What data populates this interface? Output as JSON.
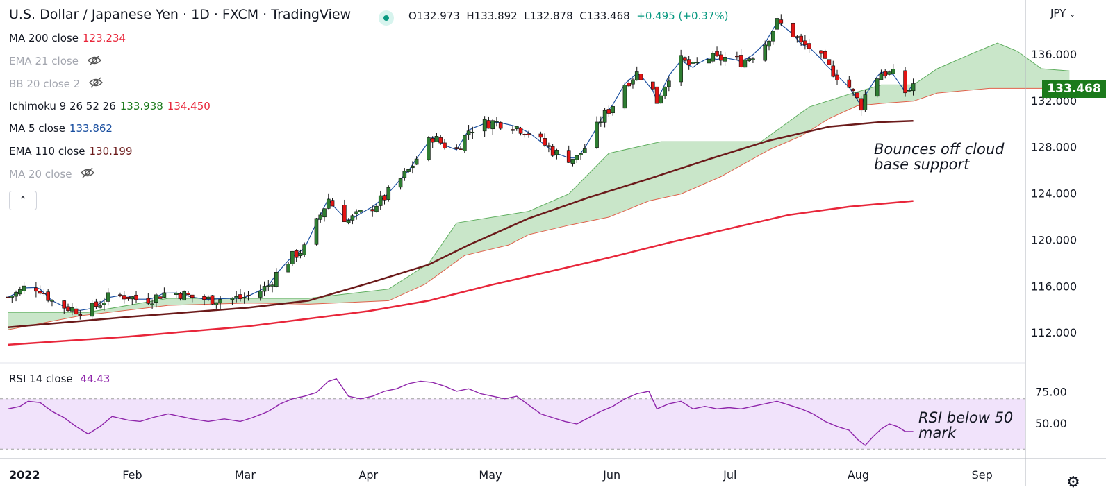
{
  "header": {
    "title": "U.S. Dollar / Japanese Yen · 1D · FXCM · TradingView",
    "ohlc": {
      "o": "O132.973",
      "h": "H133.892",
      "l": "L132.878",
      "c": "C133.468",
      "change": "+0.495 (+0.37%)"
    }
  },
  "indicators": [
    {
      "label": "MA 200 close",
      "value": "123.234",
      "color": "#e8263a",
      "hidden": false
    },
    {
      "label": "EMA 21 close",
      "value": "",
      "hidden": true
    },
    {
      "label": "BB 20 close 2",
      "value": "",
      "hidden": true
    },
    {
      "label": "Ichimoku 9 26 52 26",
      "value": "133.938",
      "value2": "134.450",
      "color": "#1b7a1b",
      "color2": "#e8263a",
      "hidden": false
    },
    {
      "label": "MA 5 close",
      "value": "133.862",
      "color": "#1a4fa0",
      "hidden": false
    },
    {
      "label": "EMA 110 close",
      "value": "130.199",
      "color": "#6b1a1a",
      "hidden": false
    },
    {
      "label": "MA 20 close",
      "value": "",
      "hidden": true
    }
  ],
  "rsi_legend": {
    "label": "RSI 14 close",
    "value": "44.43",
    "color": "#8e24aa"
  },
  "currency": "JPY",
  "current_price": "133.468",
  "annotations": {
    "main_line1": "Bounces off cloud",
    "main_line2": "base support",
    "rsi_line1": "RSI below 50",
    "rsi_line2": "mark"
  },
  "chart_data": [
    {
      "type": "candlestick",
      "ylim": [
        109.5,
        140.6
      ],
      "y_ticks": [
        "136.000",
        "132.000",
        "128.000",
        "124.000",
        "120.000",
        "116.000",
        "112.000"
      ],
      "x_ticks": [
        "2022",
        "Feb",
        "Mar",
        "Apr",
        "May",
        "Jun",
        "Jul",
        "Aug",
        "Sep"
      ],
      "x_tick_days": [
        0,
        31,
        59,
        90,
        120,
        151,
        181,
        212,
        243
      ],
      "days_visible": [
        -2,
        254
      ],
      "close_anchors": [
        [
          0,
          115.1
        ],
        [
          3,
          115.6
        ],
        [
          5,
          116.2
        ],
        [
          8,
          115.8
        ],
        [
          11,
          114.8
        ],
        [
          14,
          114.3
        ],
        [
          17,
          114.0
        ],
        [
          20,
          113.9
        ],
        [
          23,
          114.6
        ],
        [
          26,
          115.3
        ],
        [
          30,
          115.2
        ],
        [
          33,
          114.8
        ],
        [
          36,
          115.0
        ],
        [
          40,
          115.6
        ],
        [
          43,
          115.4
        ],
        [
          46,
          115.1
        ],
        [
          50,
          114.9
        ],
        [
          54,
          115.0
        ],
        [
          58,
          115.0
        ],
        [
          61,
          115.3
        ],
        [
          65,
          116.1
        ],
        [
          68,
          117.6
        ],
        [
          71,
          118.6
        ],
        [
          74,
          119.3
        ],
        [
          77,
          121.5
        ],
        [
          80,
          123.6
        ],
        [
          82,
          122.5
        ],
        [
          85,
          121.7
        ],
        [
          88,
          122.3
        ],
        [
          91,
          122.9
        ],
        [
          94,
          123.7
        ],
        [
          97,
          124.9
        ],
        [
          100,
          126.0
        ],
        [
          103,
          127.6
        ],
        [
          106,
          128.9
        ],
        [
          109,
          128.2
        ],
        [
          112,
          127.8
        ],
        [
          115,
          129.5
        ],
        [
          118,
          130.0
        ],
        [
          121,
          130.2
        ],
        [
          124,
          130.1
        ],
        [
          127,
          129.8
        ],
        [
          130,
          129.3
        ],
        [
          133,
          128.5
        ],
        [
          136,
          127.7
        ],
        [
          139,
          127.1
        ],
        [
          142,
          127.1
        ],
        [
          145,
          128.4
        ],
        [
          148,
          130.4
        ],
        [
          151,
          131.7
        ],
        [
          154,
          133.5
        ],
        [
          157,
          134.4
        ],
        [
          160,
          133.8
        ],
        [
          162,
          132.0
        ],
        [
          165,
          134.2
        ],
        [
          168,
          135.5
        ],
        [
          171,
          134.9
        ],
        [
          174,
          135.8
        ],
        [
          177,
          135.6
        ],
        [
          180,
          135.8
        ],
        [
          183,
          135.4
        ],
        [
          186,
          136.0
        ],
        [
          189,
          137.0
        ],
        [
          192,
          138.8
        ],
        [
          195,
          138.2
        ],
        [
          198,
          136.9
        ],
        [
          201,
          136.5
        ],
        [
          204,
          135.2
        ],
        [
          207,
          134.2
        ],
        [
          210,
          133.2
        ],
        [
          213,
          131.6
        ],
        [
          215,
          133.4
        ],
        [
          218,
          134.5
        ],
        [
          221,
          134.3
        ],
        [
          223,
          132.6
        ],
        [
          225,
          133.0
        ],
        [
          226,
          133.5
        ]
      ],
      "volatility": 0.9,
      "ichimoku_cloud": {
        "top": [
          [
            0,
            113.8
          ],
          [
            20,
            113.8
          ],
          [
            40,
            115.0
          ],
          [
            60,
            115.0
          ],
          [
            75,
            115.0
          ],
          [
            95,
            115.8
          ],
          [
            105,
            118.0
          ],
          [
            112,
            121.5
          ],
          [
            130,
            122.5
          ],
          [
            140,
            124.0
          ],
          [
            150,
            127.5
          ],
          [
            163,
            128.5
          ],
          [
            178,
            128.5
          ],
          [
            188,
            128.5
          ],
          [
            200,
            131.5
          ],
          [
            210,
            132.6
          ],
          [
            218,
            133.4
          ],
          [
            226,
            133.4
          ],
          [
            232,
            134.8
          ],
          [
            240,
            136.0
          ],
          [
            247,
            137.0
          ],
          [
            252,
            136.3
          ],
          [
            258,
            134.8
          ],
          [
            265,
            134.6
          ]
        ],
        "bottom": [
          [
            0,
            112.3
          ],
          [
            18,
            113.5
          ],
          [
            40,
            114.4
          ],
          [
            60,
            114.6
          ],
          [
            75,
            114.5
          ],
          [
            95,
            114.8
          ],
          [
            104,
            116.2
          ],
          [
            114,
            118.7
          ],
          [
            125,
            119.6
          ],
          [
            130,
            120.5
          ],
          [
            140,
            121.3
          ],
          [
            150,
            122.0
          ],
          [
            160,
            123.4
          ],
          [
            168,
            124.0
          ],
          [
            178,
            125.5
          ],
          [
            190,
            127.8
          ],
          [
            198,
            129.0
          ],
          [
            205,
            130.5
          ],
          [
            212,
            131.6
          ],
          [
            218,
            131.8
          ],
          [
            226,
            132.0
          ],
          [
            232,
            132.7
          ],
          [
            245,
            133.1
          ],
          [
            265,
            133.1
          ]
        ]
      },
      "ema110": [
        [
          0,
          112.5
        ],
        [
          30,
          113.4
        ],
        [
          60,
          114.2
        ],
        [
          75,
          114.8
        ],
        [
          90,
          116.3
        ],
        [
          105,
          117.9
        ],
        [
          115,
          119.6
        ],
        [
          130,
          121.9
        ],
        [
          145,
          123.7
        ],
        [
          160,
          125.3
        ],
        [
          175,
          127.0
        ],
        [
          190,
          128.6
        ],
        [
          205,
          129.8
        ],
        [
          218,
          130.2
        ],
        [
          226,
          130.3
        ]
      ],
      "ma200": [
        [
          0,
          111.0
        ],
        [
          30,
          111.7
        ],
        [
          60,
          112.6
        ],
        [
          90,
          113.9
        ],
        [
          105,
          114.8
        ],
        [
          120,
          116.1
        ],
        [
          135,
          117.3
        ],
        [
          150,
          118.5
        ],
        [
          165,
          119.8
        ],
        [
          180,
          121.0
        ],
        [
          195,
          122.2
        ],
        [
          210,
          122.9
        ],
        [
          226,
          123.4
        ]
      ]
    },
    {
      "type": "line",
      "name": "RSI 14 close",
      "ylim": [
        23,
        98
      ],
      "y_ticks": [
        "75.00",
        "50.00"
      ],
      "band": [
        30,
        70
      ],
      "values": [
        [
          0,
          62
        ],
        [
          3,
          64
        ],
        [
          5,
          68
        ],
        [
          8,
          67
        ],
        [
          11,
          60
        ],
        [
          14,
          55
        ],
        [
          17,
          48
        ],
        [
          20,
          42
        ],
        [
          23,
          48
        ],
        [
          26,
          56
        ],
        [
          30,
          53
        ],
        [
          33,
          52
        ],
        [
          36,
          55
        ],
        [
          40,
          58
        ],
        [
          43,
          56
        ],
        [
          46,
          54
        ],
        [
          50,
          52
        ],
        [
          54,
          54
        ],
        [
          58,
          52
        ],
        [
          61,
          55
        ],
        [
          65,
          60
        ],
        [
          68,
          66
        ],
        [
          71,
          70
        ],
        [
          74,
          72
        ],
        [
          77,
          75
        ],
        [
          80,
          84
        ],
        [
          82,
          86
        ],
        [
          85,
          72
        ],
        [
          88,
          70
        ],
        [
          91,
          72
        ],
        [
          94,
          76
        ],
        [
          97,
          78
        ],
        [
          100,
          82
        ],
        [
          103,
          84
        ],
        [
          106,
          83
        ],
        [
          109,
          80
        ],
        [
          112,
          76
        ],
        [
          115,
          78
        ],
        [
          118,
          74
        ],
        [
          121,
          72
        ],
        [
          124,
          70
        ],
        [
          127,
          72
        ],
        [
          130,
          65
        ],
        [
          133,
          58
        ],
        [
          136,
          55
        ],
        [
          139,
          52
        ],
        [
          142,
          50
        ],
        [
          145,
          55
        ],
        [
          148,
          60
        ],
        [
          151,
          64
        ],
        [
          154,
          70
        ],
        [
          157,
          74
        ],
        [
          160,
          76
        ],
        [
          162,
          62
        ],
        [
          165,
          66
        ],
        [
          168,
          68
        ],
        [
          171,
          62
        ],
        [
          174,
          64
        ],
        [
          177,
          62
        ],
        [
          180,
          63
        ],
        [
          183,
          62
        ],
        [
          186,
          64
        ],
        [
          189,
          66
        ],
        [
          192,
          68
        ],
        [
          195,
          65
        ],
        [
          198,
          62
        ],
        [
          201,
          58
        ],
        [
          204,
          52
        ],
        [
          207,
          48
        ],
        [
          210,
          45
        ],
        [
          212,
          38
        ],
        [
          214,
          33
        ],
        [
          216,
          40
        ],
        [
          218,
          46
        ],
        [
          220,
          50
        ],
        [
          222,
          48
        ],
        [
          224,
          44
        ],
        [
          226,
          44
        ]
      ]
    }
  ]
}
